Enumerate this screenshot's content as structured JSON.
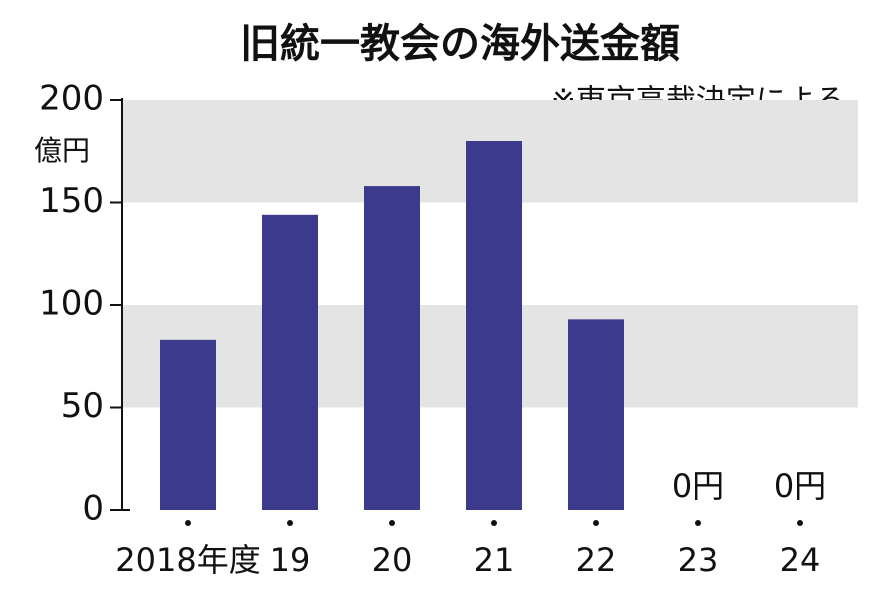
{
  "chart_data": {
    "type": "bar",
    "title": "旧統一教会の海外送金額",
    "annotation": "※東京高裁決定による",
    "y_label": "億円",
    "categories": [
      "2018年度",
      "19",
      "20",
      "21",
      "22",
      "23",
      "24"
    ],
    "values": [
      83,
      144,
      158,
      180,
      93,
      0,
      0
    ],
    "value_labels": [
      null,
      null,
      null,
      null,
      null,
      "0円",
      "0円"
    ],
    "color": "#3c3a8c",
    "ylim": [
      0,
      200
    ],
    "yticks": [
      0,
      50,
      100,
      150,
      200
    ],
    "grid_bands": true
  }
}
